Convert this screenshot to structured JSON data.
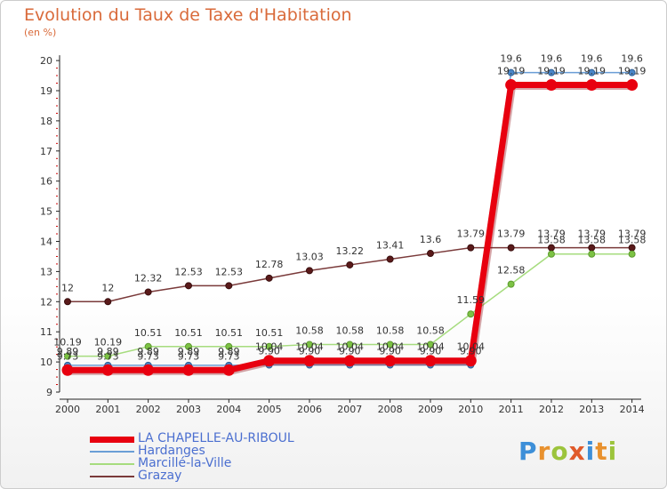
{
  "header": {
    "title": "Evolution du Taux de Taxe d'Habitation",
    "unit": "(en %)"
  },
  "brand": {
    "p": "P",
    "r": "r",
    "o": "o",
    "x": "x",
    "i": "i",
    "t": "t",
    "i2": "i"
  },
  "chart_data": {
    "type": "line",
    "title": "Evolution du Taux de Taxe d'Habitation",
    "ylabel": "(en %)",
    "xlabel": "",
    "ylim": [
      9,
      20
    ],
    "yticks": [
      "9",
      "10",
      "11",
      "12",
      "13",
      "14",
      "15",
      "16",
      "17",
      "18",
      "19",
      "20"
    ],
    "categories": [
      "2000",
      "2001",
      "2002",
      "2003",
      "2004",
      "2005",
      "2006",
      "2007",
      "2008",
      "2009",
      "2010",
      "2011",
      "2012",
      "2013",
      "2014"
    ],
    "series": [
      {
        "name": "LA CHAPELLE-AU-RIBOUL",
        "color": "#e8000f",
        "values": [
          9.73,
          9.73,
          9.73,
          9.73,
          9.73,
          10.04,
          10.04,
          10.04,
          10.04,
          10.04,
          10.04,
          19.19,
          19.19,
          19.19,
          19.19
        ],
        "labels": [
          "9.73",
          "9.73",
          "9.73",
          "9.73",
          "9.73",
          "10.04",
          "10.04",
          "10.04",
          "10.04",
          "10.04",
          "10.04",
          "19.19",
          "19.19",
          "19.19",
          "19.19"
        ]
      },
      {
        "name": "Hardanges",
        "color": "#6a9ed6",
        "values": [
          9.89,
          9.89,
          9.89,
          9.89,
          9.89,
          9.9,
          9.9,
          9.9,
          9.9,
          9.9,
          9.9,
          19.6,
          19.6,
          19.6,
          19.6
        ],
        "labels": [
          "9.89",
          "9.89",
          "9.89",
          "9.89",
          "9.89",
          "9.90",
          "9.90",
          "9.90",
          "9.90",
          "9.90",
          "9.90",
          "19.6",
          "19.6",
          "19.6",
          "19.6"
        ]
      },
      {
        "name": "Marcillé-la-Ville",
        "color": "#a6dc7e",
        "values": [
          10.19,
          10.19,
          10.51,
          10.51,
          10.51,
          10.51,
          10.58,
          10.58,
          10.58,
          10.58,
          11.59,
          12.58,
          13.58,
          13.58,
          13.58
        ],
        "labels": [
          "10.19",
          "10.19",
          "10.51",
          "10.51",
          "10.51",
          "10.51",
          "10.58",
          "10.58",
          "10.58",
          "10.58",
          "11.59",
          "12.58",
          "13.58",
          "13.58",
          "13.58"
        ]
      },
      {
        "name": "Grazay",
        "color": "#7a3a3a",
        "values": [
          12,
          12,
          12.32,
          12.53,
          12.53,
          12.78,
          13.03,
          13.22,
          13.41,
          13.6,
          13.79,
          13.79,
          13.79,
          13.79,
          13.79
        ],
        "labels": [
          "12",
          "12",
          "12.32",
          "12.53",
          "12.53",
          "12.78",
          "13.03",
          "13.22",
          "13.41",
          "13.6",
          "13.79",
          "13.79",
          "13.79",
          "13.79",
          "13.79"
        ]
      }
    ]
  }
}
